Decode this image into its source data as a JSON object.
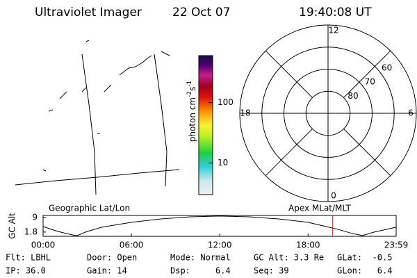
{
  "header": {
    "title": "Ultraviolet Imager",
    "date": "22 Oct 07",
    "time": "19:40:08 UT"
  },
  "colorbar": {
    "label": "photon cm",
    "exp1": "-2",
    "unit2": "s",
    "exp2": "-1",
    "log": true,
    "range": [
      3,
      600
    ],
    "ticks": [
      10,
      100
    ]
  },
  "polar": {
    "lat_lim": [
      90,
      50
    ],
    "rings": [
      80,
      70,
      60,
      50
    ],
    "lat_labels": [
      80,
      70,
      60
    ],
    "mlt_ticks": [
      12,
      6,
      0,
      18
    ]
  },
  "orbit": {
    "ylabel": "GC Alt",
    "left_label": "Geographic Lat/Lon",
    "right_label": "Apex MLat/MLT",
    "xlim": [
      0,
      23.983
    ],
    "ylim": [
      -0.3,
      10.0
    ],
    "yticks": [
      9.0,
      1.8
    ],
    "xticks": [
      {
        "value": 0,
        "label": "00:00"
      },
      {
        "value": 6,
        "label": "06:00"
      },
      {
        "value": 12,
        "label": "12:00"
      },
      {
        "value": 18,
        "label": "18:00"
      },
      {
        "value": 23.983,
        "label": "23:59"
      }
    ],
    "hours": [
      0,
      1,
      2,
      2.3,
      3,
      4,
      6,
      8,
      10,
      12,
      14,
      16,
      18,
      19,
      20,
      21,
      21.7,
      22.5,
      23.983
    ],
    "values": [
      4.5,
      2.1,
      0.4,
      0.0,
      2.1,
      4.2,
      6.6,
      8.3,
      9.3,
      9.7,
      9.3,
      8.3,
      6.6,
      4.9,
      3.2,
      1.1,
      0.1,
      1.8,
      4.2
    ],
    "current_time": 19.67,
    "current_color": "#d03030"
  },
  "footer": {
    "rows": [
      [
        "Flt: LBHL",
        "Door: Open",
        "Mode: Normal",
        "GC Alt: 3.3 Re",
        "GLat:  -0.5"
      ],
      [
        "IP: 36.0",
        "Gain: 14",
        "Dsp:     6.4",
        "Seq: 39",
        "GLon:   6.4"
      ]
    ]
  }
}
